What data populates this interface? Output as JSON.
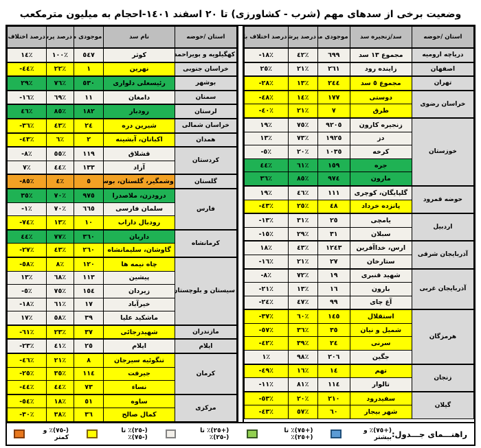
{
  "title": "وضعیت برخی از سدهای مهم (شرب - کشاورزی) تا ٢٠ اسفند ١٤٠١-احجام به میلیون مترمکعب",
  "colors": {
    "row_white": "#f2f0ea",
    "row_yellow": "#ffff00",
    "row_green": "#1fb254",
    "row_orange": "#f2a124",
    "header_bg": "#bfbfbf",
    "province_bg": "#d9d9d9"
  },
  "chart_data": [
    {
      "type": "table",
      "position": "right",
      "headers": [
        "استان /حوضه",
        "سد/زنجیره سد",
        "موجودی مخزن",
        "درصد پرشدگی",
        "درصد اختلاف با سال قبل"
      ],
      "rows": [
        {
          "province": "دریاچه ارومیه",
          "province_span": 1,
          "name": "مجموع ١٣ سد",
          "volume": "٦٩٩",
          "fill": "٤٢٪",
          "diff": "-١٨٪",
          "status": "white"
        },
        {
          "province": "اصفهان",
          "province_span": 1,
          "name": "زاینده رود",
          "volume": "٢٦١",
          "fill": "٢١٪",
          "diff": "٢٥٪",
          "status": "white"
        },
        {
          "province": "تهران",
          "province_span": 1,
          "name": "مجموع ٥ سد",
          "volume": "٢٤٤",
          "fill": "١٣٪",
          "diff": "-٢٨٪",
          "status": "yellow"
        },
        {
          "province": "خراسان رضوی",
          "province_span": 2,
          "name": "دوستی",
          "volume": "١٧٧",
          "fill": "١٤٪",
          "diff": "-٤٨٪",
          "status": "yellow"
        },
        {
          "name": "طرق",
          "volume": "٧",
          "fill": "٢١٪",
          "diff": "-٤٠٪",
          "status": "yellow"
        },
        {
          "province": "خوزستان",
          "province_span": 5,
          "name": "زنجیره کارون",
          "volume": "٩٢٠٥",
          "fill": "٧٥٪",
          "diff": "١٩٪",
          "status": "white"
        },
        {
          "name": "دز",
          "volume": "١٩٢٥",
          "fill": "٧٣٪",
          "diff": "١٣٪",
          "status": "white"
        },
        {
          "name": "کرخه",
          "volume": "١٠٣٥",
          "fill": "٢٠٪",
          "diff": "-٥٪",
          "status": "white"
        },
        {
          "name": "جره",
          "volume": "١٥٩",
          "fill": "٦١٪",
          "diff": "٤٤٪",
          "status": "green"
        },
        {
          "name": "مارون",
          "volume": "٩٧٤",
          "fill": "٨٥٪",
          "diff": "٣٦٪",
          "status": "green"
        },
        {
          "province": "حوضه قمرود",
          "province_span": 2,
          "name": "گلپایگان، کوچری",
          "volume": "١١١",
          "fill": "٤٦٪",
          "diff": "١٩٪",
          "status": "white"
        },
        {
          "name": "پانزده خرداد",
          "volume": "٤٨",
          "fill": "٢٥٪",
          "diff": "-٤٣٪",
          "status": "yellow"
        },
        {
          "province": "اردبیل",
          "province_span": 2,
          "name": "یامچی",
          "volume": "٢٥",
          "fill": "٣١٪",
          "diff": "-١٣٪",
          "status": "white"
        },
        {
          "name": "سبلان",
          "volume": "٣١",
          "fill": "٢٩٪",
          "diff": "-١٥٪",
          "status": "white"
        },
        {
          "province": "آذربایجان شرقی",
          "province_span": 2,
          "name": "ارس، خداآفرین",
          "volume": "١٢٤٣",
          "fill": "٤٣٪",
          "diff": "١٨٪",
          "status": "white"
        },
        {
          "name": "ستارخان",
          "volume": "٢٧",
          "fill": "٢١٪",
          "diff": "-١٦٪",
          "status": "white"
        },
        {
          "province": "آذربایجان غربی",
          "province_span": 3,
          "name": "شهید قنبری",
          "volume": "١٩",
          "fill": "٧٢٪",
          "diff": "-٨٪",
          "status": "white"
        },
        {
          "name": "بارون",
          "volume": "١٦",
          "fill": "١٣٪",
          "diff": "-٢١٪",
          "status": "white"
        },
        {
          "name": "آغ چای",
          "volume": "٩٩",
          "fill": "٤٧٪",
          "diff": "-٢٤٪",
          "status": "white"
        },
        {
          "province": "هرمزگان",
          "province_span": 4,
          "name": "استقلال",
          "volume": "١٤٥",
          "fill": "٦٠٪",
          "diff": "-٣٧٪",
          "status": "yellow"
        },
        {
          "name": "شمیل و نیان",
          "volume": "٣٥",
          "fill": "٣٦٪",
          "diff": "-٥٧٪",
          "status": "yellow"
        },
        {
          "name": "سرنی",
          "volume": "٢٤",
          "fill": "٣٩٪",
          "diff": "-٤٢٪",
          "status": "yellow"
        },
        {
          "name": "جگین",
          "volume": "٢٠٦",
          "fill": "٩٨٪",
          "diff": "١٪",
          "status": "white"
        },
        {
          "province": "زنجان",
          "province_span": 2,
          "name": "تهم",
          "volume": "١٤",
          "fill": "١٦٪",
          "diff": "-٤٩٪",
          "status": "yellow"
        },
        {
          "name": "تالوار",
          "volume": "١١٤",
          "fill": "٨١٪",
          "diff": "-١١٪",
          "status": "white"
        },
        {
          "province": "گیلان",
          "province_span": 2,
          "name": "سفیدرود",
          "volume": "٢١٠",
          "fill": "٢٠٪",
          "diff": "-٥٣٪",
          "status": "yellow"
        },
        {
          "name": "شهر بیجار",
          "volume": "٦٠",
          "fill": "٥٧٪",
          "diff": "-٤٣٪",
          "status": "yellow"
        }
      ]
    },
    {
      "type": "table",
      "position": "left",
      "headers": [
        "استان /حوضه",
        "نام سد",
        "موجودی مخزن",
        "درصد پرشدگی",
        "درصد اختلاف با سال قبل"
      ],
      "rows": [
        {
          "province": "کهگیلویه و بویراحمد",
          "province_span": 1,
          "name": "کوثر",
          "volume": "٥٤٧",
          "fill": "١٠٠٪",
          "diff": "١٤٪",
          "status": "white"
        },
        {
          "province": "خراسان جنوبی",
          "province_span": 1,
          "name": "نهرین",
          "volume": "١",
          "fill": "٢٢٪",
          "diff": "-٤٤٪",
          "status": "yellow"
        },
        {
          "province": "بوشهر",
          "province_span": 1,
          "name": "رئیسعلی دلواری",
          "volume": "٥٣٠",
          "fill": "٧٦٪",
          "diff": "٢٩٪",
          "status": "green"
        },
        {
          "province": "سمنان",
          "province_span": 1,
          "name": "دامغان",
          "volume": "١١",
          "fill": "٦٩٪",
          "diff": "-١٦٪",
          "status": "white"
        },
        {
          "province": "لرستان",
          "province_span": 1,
          "name": "رودبار",
          "volume": "١٨٢",
          "fill": "٨٥٪",
          "diff": "٤٦٪",
          "status": "green"
        },
        {
          "province": "خراسان شمالی",
          "province_span": 1,
          "name": "شیرین دره",
          "volume": "٢٤",
          "fill": "٤٣٪",
          "diff": "-٣٦٪",
          "status": "yellow"
        },
        {
          "province": "همدان",
          "province_span": 1,
          "name": "اکباتان، آبشینه",
          "volume": "٢",
          "fill": "٦٪",
          "diff": "-٤٣٪",
          "status": "yellow"
        },
        {
          "province": "کردستان",
          "province_span": 2,
          "name": "قشلاق",
          "volume": "١١٩",
          "fill": "٥٥٪",
          "diff": "-٨٪",
          "status": "white"
        },
        {
          "name": "آزاد",
          "volume": "١٣٣",
          "fill": "٤٤٪",
          "diff": "٧٪",
          "status": "white"
        },
        {
          "province": "گلستان",
          "province_span": 1,
          "name": "وشمگیر، گلستان، بوستان",
          "volume": "٥",
          "fill": "٤٪",
          "diff": "-٨٥٪",
          "status": "orange"
        },
        {
          "province": "فارس",
          "province_span": 3,
          "name": "درودزن، ملاصدرا",
          "volume": "٩٧٥",
          "fill": "٧٠٪",
          "diff": "٣٥٪",
          "status": "green"
        },
        {
          "name": "سلمان فارسی",
          "volume": "٦٦٥",
          "fill": "٧٠٪",
          "diff": "-١٪",
          "status": "white"
        },
        {
          "name": "رودبال داراب",
          "volume": "١٠",
          "fill": "١٣٪",
          "diff": "-٧٤٪",
          "status": "yellow"
        },
        {
          "province": "کرمانشاه",
          "province_span": 2,
          "name": "داریان",
          "volume": "٣٦٠",
          "fill": "٧٧٪",
          "diff": "٤٤٪",
          "status": "green"
        },
        {
          "name": "گاوشان، سلیمانشاه",
          "volume": "٢٦٠",
          "fill": "٤٣٪",
          "diff": "-٢٧٪",
          "status": "yellow"
        },
        {
          "province": "سیستان و بلوچستان",
          "province_span": 5,
          "name": "چاه نیمه ها",
          "volume": "١٢٠",
          "fill": "٨٪",
          "diff": "-٥٨٪",
          "status": "yellow"
        },
        {
          "name": "پیشین",
          "volume": "١١٣",
          "fill": "٦٨٪",
          "diff": "١٣٪",
          "status": "white"
        },
        {
          "name": "زیردان",
          "volume": "١٥٤",
          "fill": "٧٥٪",
          "diff": "-٥٪",
          "status": "white"
        },
        {
          "name": "خیرآباد",
          "volume": "١٧",
          "fill": "٦١٪",
          "diff": "-١٨٪",
          "status": "white"
        },
        {
          "name": "ماشکید علیا",
          "volume": "٣٩",
          "fill": "٥٨٪",
          "diff": "١٧٪",
          "status": "white"
        },
        {
          "province": "مازندران",
          "province_span": 1,
          "name": "شهیدرجائی",
          "volume": "٣٧",
          "fill": "٢٣٪",
          "diff": "-٦١٪",
          "status": "yellow"
        },
        {
          "province": "ایلام",
          "province_span": 1,
          "name": "ایلام",
          "volume": "٢٥",
          "fill": "٤١٪",
          "diff": "-٢٣٪",
          "status": "white"
        },
        {
          "province": "کرمان",
          "province_span": 3,
          "name": "تنگوئیه سیرجان",
          "volume": "٨",
          "fill": "٢١٪",
          "diff": "-٤٦٪",
          "status": "yellow"
        },
        {
          "name": "جیرفت",
          "volume": "١١٤",
          "fill": "٣٥٪",
          "diff": "-٢٥٪",
          "status": "yellow"
        },
        {
          "name": "نساء",
          "volume": "٧٣",
          "fill": "٤٤٪",
          "diff": "-٤٤٪",
          "status": "yellow"
        },
        {
          "province": "مرکزی",
          "province_span": 2,
          "name": "ساوه",
          "volume": "٥١",
          "fill": "١٨٪",
          "diff": "-٥٤٪",
          "status": "yellow"
        },
        {
          "name": "کمال صالح",
          "volume": "٣٦",
          "fill": "٣٨٪",
          "diff": "-٣٠٪",
          "status": "yellow"
        }
      ]
    }
  ],
  "legend": {
    "label": "راهنـــمای جـــدول:",
    "items": [
      {
        "icon": "legend-blue-swatch",
        "text": "(+٧٥)٪ و بیشتر",
        "color": "#5b9bd5",
        "border": "#1f4e79"
      },
      {
        "icon": "legend-green-swatch",
        "text": "(+٧٥)٪ تا (+٢٥)٪",
        "color": "#92d050",
        "border": "#375623"
      },
      {
        "icon": "legend-white-swatch",
        "text": "(+٢٥)٪ تا (-٢٥)٪",
        "color": "#f2efe9",
        "border": "#808080"
      },
      {
        "icon": "legend-yellow-swatch",
        "text": "(-٢٥)٪ تا (-٧٥)٪",
        "color": "#ffff00",
        "border": "#7f6000"
      },
      {
        "icon": "legend-orange-swatch",
        "text": "(-٧٥)٪ و کمتر",
        "color": "#e8781e",
        "border": "#843c0c"
      }
    ]
  }
}
